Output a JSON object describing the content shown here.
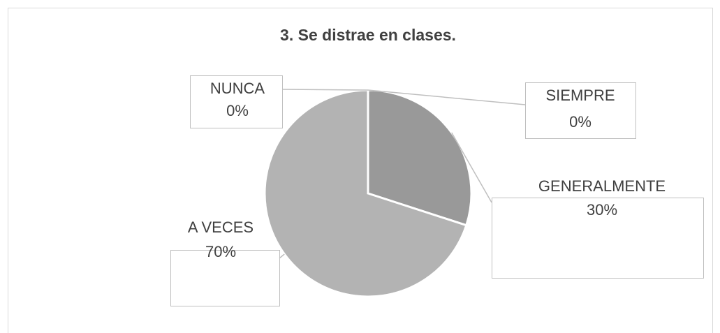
{
  "chart_data": {
    "type": "pie",
    "title": "3. Se distrae en clases.",
    "categories": [
      "SIEMPRE",
      "GENERALMENTE",
      "A VECES",
      "NUNCA"
    ],
    "values": [
      0,
      30,
      70,
      0
    ],
    "value_labels": [
      "0%",
      "30%",
      "70%",
      "0%"
    ],
    "colors": [
      "#7f7f7f",
      "#999999",
      "#b3b3b3",
      "#cccccc"
    ]
  }
}
